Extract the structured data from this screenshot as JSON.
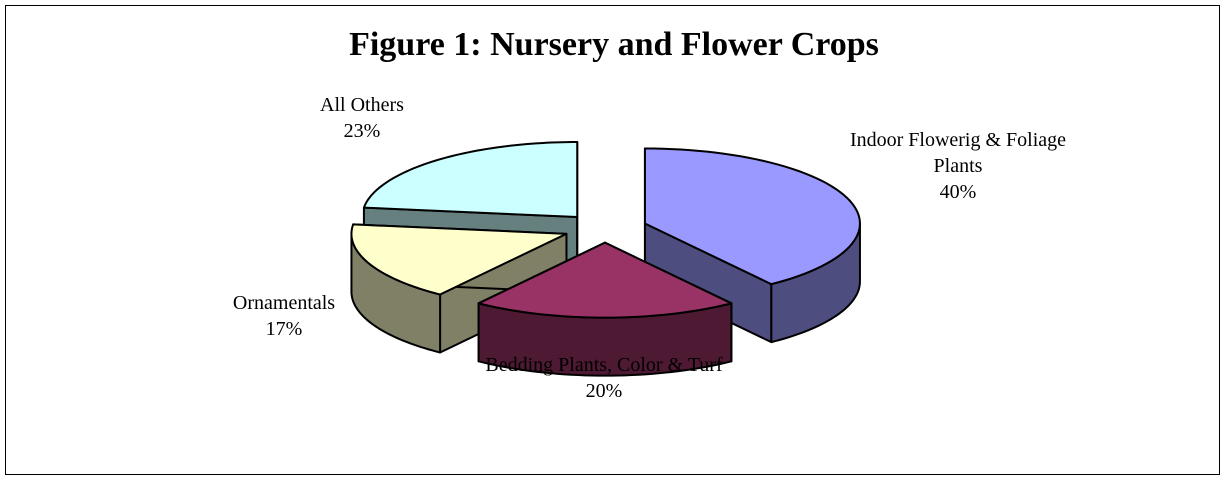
{
  "chart_data": {
    "type": "pie3d",
    "title": "Figure 1: Nursery and Flower Crops",
    "categories": [
      "Indoor Flowerig & Foliage Plants",
      "Bedding Plants, Color & Turf",
      "Ornamentals",
      "All Others"
    ],
    "values": [
      40,
      20,
      17,
      23
    ],
    "value_labels": [
      "40%",
      "20%",
      "17%",
      "23%"
    ],
    "colors": [
      "#9999ff",
      "#993366",
      "#ffffcc",
      "#ccffff"
    ],
    "side_colors": [
      "#4d4d80",
      "#4d1933",
      "#808066",
      "#668080"
    ]
  }
}
